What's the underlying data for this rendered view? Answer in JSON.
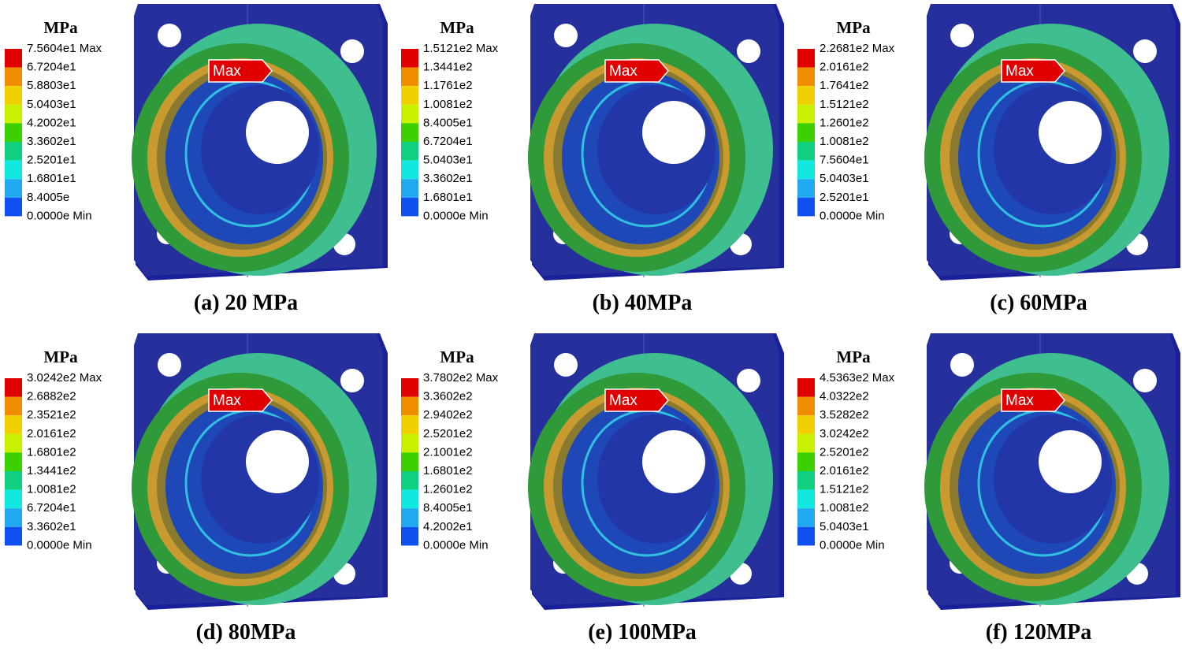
{
  "panels": [
    {
      "unit": "MPa",
      "legend": [
        "7.5604e1 Max",
        "6.7204e1",
        "5.8803e1",
        "5.0403e1",
        "4.2002e1",
        "3.3602e1",
        "2.5201e1",
        "1.6801e1",
        "8.4005e",
        "0.0000e Min"
      ],
      "marker": "Max",
      "caption": "(a) 20 MPa"
    },
    {
      "unit": "MPa",
      "legend": [
        "1.5121e2 Max",
        "1.3441e2",
        "1.1761e2",
        "1.0081e2",
        "8.4005e1",
        "6.7204e1",
        "5.0403e1",
        "3.3602e1",
        "1.6801e1",
        "0.0000e Min"
      ],
      "marker": "Max",
      "caption": "(b) 40MPa"
    },
    {
      "unit": "MPa",
      "legend": [
        "2.2681e2 Max",
        "2.0161e2",
        "1.7641e2",
        "1.5121e2",
        "1.2601e2",
        "1.0081e2",
        "7.5604e1",
        "5.0403e1",
        "2.5201e1",
        "0.0000e Min"
      ],
      "marker": "Max",
      "caption": "(c) 60MPa"
    },
    {
      "unit": "MPa",
      "legend": [
        "3.0242e2 Max",
        "2.6882e2",
        "2.3521e2",
        "2.0161e2",
        "1.6801e2",
        "1.3441e2",
        "1.0081e2",
        "6.7204e1",
        "3.3602e1",
        "0.0000e Min"
      ],
      "marker": "Max",
      "caption": "(d) 80MPa"
    },
    {
      "unit": "MPa",
      "legend": [
        "3.7802e2 Max",
        "3.3602e2",
        "2.9402e2",
        "2.5201e2",
        "2.1001e2",
        "1.6801e2",
        "1.2601e2",
        "8.4005e1",
        "4.2002e1",
        "0.0000e Min"
      ],
      "marker": "Max",
      "caption": "(e) 100MPa"
    },
    {
      "unit": "MPa",
      "legend": [
        "4.5363e2 Max",
        "4.0322e2",
        "3.5282e2",
        "3.0242e2",
        "2.5201e2",
        "2.0161e2",
        "1.5121e2",
        "1.0081e2",
        "5.0403e1",
        "0.0000e Min"
      ],
      "marker": "Max",
      "caption": "(f) 120MPa"
    }
  ]
}
